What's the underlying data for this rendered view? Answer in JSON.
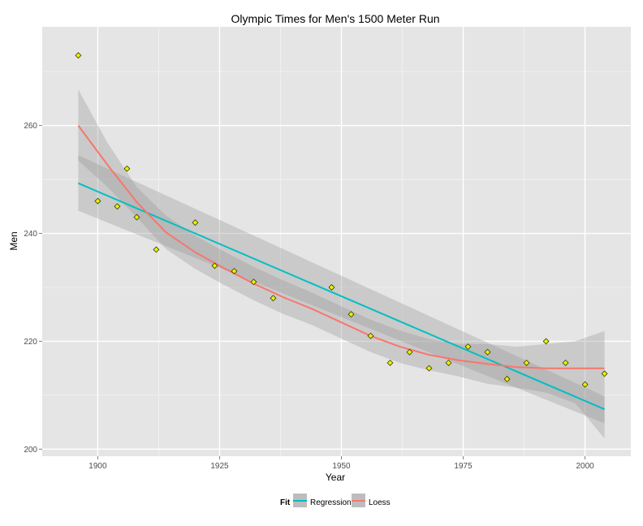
{
  "chart_data": {
    "type": "scatter",
    "title": "Olympic Times for Men's 1500 Meter Run",
    "xlabel": "Year",
    "ylabel": "Men",
    "xlim": [
      1888.6,
      2009.4
    ],
    "ylim": [
      198.7,
      278.3
    ],
    "x_ticks": [
      1900,
      1925,
      1950,
      1975,
      2000
    ],
    "y_ticks": [
      200,
      220,
      240,
      260
    ],
    "grid": true,
    "points": {
      "fill": "#e5f500",
      "stroke": "#3a3a00",
      "x": [
        1896,
        1900,
        1904,
        1906,
        1908,
        1912,
        1920,
        1924,
        1928,
        1932,
        1936,
        1948,
        1952,
        1956,
        1960,
        1964,
        1968,
        1972,
        1976,
        1980,
        1984,
        1988,
        1992,
        1996,
        2000,
        2004
      ],
      "y": [
        273,
        246,
        245,
        252,
        243,
        237,
        242,
        234,
        233,
        231,
        228,
        230,
        225,
        221,
        216,
        218,
        215,
        216,
        219,
        218,
        213,
        216,
        220,
        216,
        212,
        214
      ]
    },
    "series": [
      {
        "name": "Regression",
        "color": "#00bfc4",
        "x": [
          1896,
          2004
        ],
        "y": [
          249.3,
          207.4
        ],
        "ci_upper": [
          254.5,
          209.8
        ],
        "ci_lower": [
          244.2,
          204.8
        ]
      },
      {
        "name": "Loess",
        "color": "#f8766d",
        "x": [
          1896,
          1902,
          1908,
          1914,
          1920,
          1926,
          1932,
          1938,
          1944,
          1950,
          1956,
          1962,
          1968,
          1974,
          1980,
          1986,
          1992,
          1998,
          2004
        ],
        "y": [
          260.0,
          252.7,
          245.8,
          240.2,
          236.5,
          233.5,
          230.7,
          228.2,
          226.0,
          223.5,
          221.0,
          219.0,
          217.5,
          216.5,
          215.8,
          215.2,
          215.0,
          215.0,
          215.0
        ],
        "ci_upper": [
          266.7,
          256.8,
          248.6,
          243.3,
          239.6,
          236.6,
          233.8,
          231.3,
          229.0,
          226.5,
          224.0,
          222.0,
          220.4,
          219.5,
          219.5,
          219.0,
          219.5,
          220.0,
          221.9
        ],
        "ci_lower": [
          253.5,
          248.6,
          243.0,
          237.1,
          233.4,
          230.4,
          227.6,
          225.1,
          223.0,
          220.5,
          218.0,
          216.0,
          214.6,
          213.5,
          212.1,
          211.4,
          210.5,
          208.5,
          202.0
        ]
      }
    ],
    "legend": {
      "position": "bottom",
      "title": "Fit",
      "entries": [
        "Regression",
        "Loess"
      ]
    }
  }
}
